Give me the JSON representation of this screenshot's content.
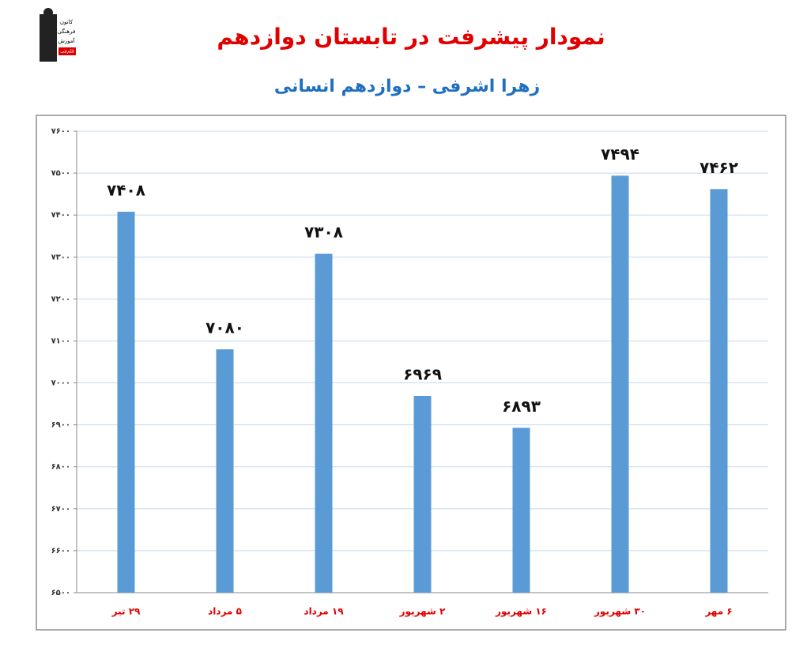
{
  "logo": {
    "lines": [
      "کانون",
      "فرهنگی",
      "آموزش",
      "قلم‌چی"
    ]
  },
  "chart_data": {
    "type": "bar",
    "title": "نمودار پیشرفت در تابستان دوازدهم",
    "subtitle": "زهرا اشرفی – دوازدهم انسانی",
    "categories": [
      "۲۹ تیر",
      "۵ مرداد",
      "۱۹ مرداد",
      "۲ شهریور",
      "۱۶ شهریور",
      "۳۰ شهریور",
      "۶ مهر"
    ],
    "values": [
      7408,
      7080,
      7308,
      6969,
      6893,
      7494,
      7462
    ],
    "value_labels": [
      "۷۴۰۸",
      "۷۰۸۰",
      "۷۳۰۸",
      "۶۹۶۹",
      "۶۸۹۳",
      "۷۴۹۴",
      "۷۴۶۲"
    ],
    "color": "#5b9bd5",
    "ylim": [
      6500,
      7600
    ],
    "yticks": [
      {
        "value": 6500,
        "label": "۶۵۰۰"
      },
      {
        "value": 6600,
        "label": "۶۶۰۰"
      },
      {
        "value": 6700,
        "label": "۶۷۰۰"
      },
      {
        "value": 6800,
        "label": "۶۸۰۰"
      },
      {
        "value": 6900,
        "label": "۶۹۰۰"
      },
      {
        "value": 7000,
        "label": "۷۰۰۰"
      },
      {
        "value": 7100,
        "label": "۷۱۰۰"
      },
      {
        "value": 7200,
        "label": "۷۲۰۰"
      },
      {
        "value": 7300,
        "label": "۷۳۰۰"
      },
      {
        "value": 7400,
        "label": "۷۴۰۰"
      },
      {
        "value": 7500,
        "label": "۷۵۰۰"
      },
      {
        "value": 7600,
        "label": "۷۶۰۰"
      }
    ],
    "grid": true
  }
}
